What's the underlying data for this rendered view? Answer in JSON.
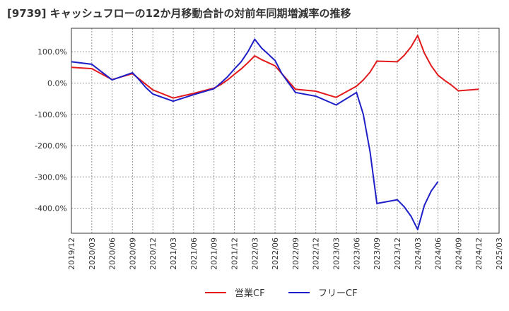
{
  "title": "[9739]  キャッシュフローの12か月移動合計の対前年同期増減率の推移",
  "chart_data": {
    "type": "line",
    "title": "[9739]  キャッシュフローの12か月移動合計の対前年同期増減率の推移",
    "xlabel": "",
    "ylabel": "",
    "ylim": [
      -480,
      175
    ],
    "yticks": [
      100,
      0,
      -100,
      -200,
      -300,
      -400
    ],
    "ytick_labels": [
      "100.0%",
      "0.0%",
      "-100.0%",
      "-200.0%",
      "-300.0%",
      "-400.0%"
    ],
    "x_ticks": [
      "2019/12",
      "2020/03",
      "2020/06",
      "2020/09",
      "2020/12",
      "2021/03",
      "2021/06",
      "2021/09",
      "2021/12",
      "2022/03",
      "2022/06",
      "2022/09",
      "2022/12",
      "2023/03",
      "2023/06",
      "2023/09",
      "2023/12",
      "2024/03",
      "2024/06",
      "2024/09",
      "2024/12",
      "2025/03"
    ],
    "x_start": "2019/12",
    "grid": true,
    "legend_position": "bottom",
    "series": [
      {
        "name": "営業CF",
        "color": "#e31a1c",
        "points": [
          [
            "2019/12",
            50
          ],
          [
            "2020/03",
            46
          ],
          [
            "2020/06",
            11
          ],
          [
            "2020/09",
            30
          ],
          [
            "2020/12",
            -22
          ],
          [
            "2021/03",
            -48
          ],
          [
            "2021/06",
            -33
          ],
          [
            "2021/09",
            -16
          ],
          [
            "2021/10",
            -5
          ],
          [
            "2021/11",
            10
          ],
          [
            "2021/12",
            28
          ],
          [
            "2022/01",
            45
          ],
          [
            "2022/02",
            65
          ],
          [
            "2022/03",
            87
          ],
          [
            "2022/04",
            75
          ],
          [
            "2022/05",
            65
          ],
          [
            "2022/06",
            55
          ],
          [
            "2022/07",
            30
          ],
          [
            "2022/08",
            5
          ],
          [
            "2022/09",
            -20
          ],
          [
            "2022/12",
            -26
          ],
          [
            "2023/03",
            -46
          ],
          [
            "2023/06",
            -10
          ],
          [
            "2023/07",
            10
          ],
          [
            "2023/08",
            35
          ],
          [
            "2023/09",
            70
          ],
          [
            "2023/12",
            68
          ],
          [
            "2024/01",
            88
          ],
          [
            "2024/02",
            115
          ],
          [
            "2024/03",
            152
          ],
          [
            "2024/04",
            95
          ],
          [
            "2024/05",
            55
          ],
          [
            "2024/06",
            25
          ],
          [
            "2024/07",
            8
          ],
          [
            "2024/08",
            -7
          ],
          [
            "2024/09",
            -25
          ],
          [
            "2024/12",
            -20
          ]
        ]
      },
      {
        "name": "フリーCF",
        "color": "#1f1fc8",
        "points": [
          [
            "2019/12",
            68
          ],
          [
            "2020/03",
            60
          ],
          [
            "2020/06",
            10
          ],
          [
            "2020/09",
            33
          ],
          [
            "2020/10",
            10
          ],
          [
            "2020/11",
            -15
          ],
          [
            "2020/12",
            -35
          ],
          [
            "2021/03",
            -58
          ],
          [
            "2021/06",
            -37
          ],
          [
            "2021/09",
            -18
          ],
          [
            "2021/10",
            0
          ],
          [
            "2021/11",
            20
          ],
          [
            "2021/12",
            45
          ],
          [
            "2022/01",
            68
          ],
          [
            "2022/02",
            100
          ],
          [
            "2022/03",
            140
          ],
          [
            "2022/04",
            112
          ],
          [
            "2022/05",
            92
          ],
          [
            "2022/06",
            72
          ],
          [
            "2022/07",
            30
          ],
          [
            "2022/08",
            0
          ],
          [
            "2022/09",
            -30
          ],
          [
            "2022/12",
            -42
          ],
          [
            "2023/03",
            -70
          ],
          [
            "2023/06",
            -30
          ],
          [
            "2023/07",
            -100
          ],
          [
            "2023/08",
            -220
          ],
          [
            "2023/09",
            -385
          ],
          [
            "2023/12",
            -373
          ],
          [
            "2024/01",
            -395
          ],
          [
            "2024/02",
            -425
          ],
          [
            "2024/03",
            -468
          ],
          [
            "2024/04",
            -390
          ],
          [
            "2024/05",
            -345
          ],
          [
            "2024/06",
            -315
          ]
        ]
      }
    ]
  }
}
